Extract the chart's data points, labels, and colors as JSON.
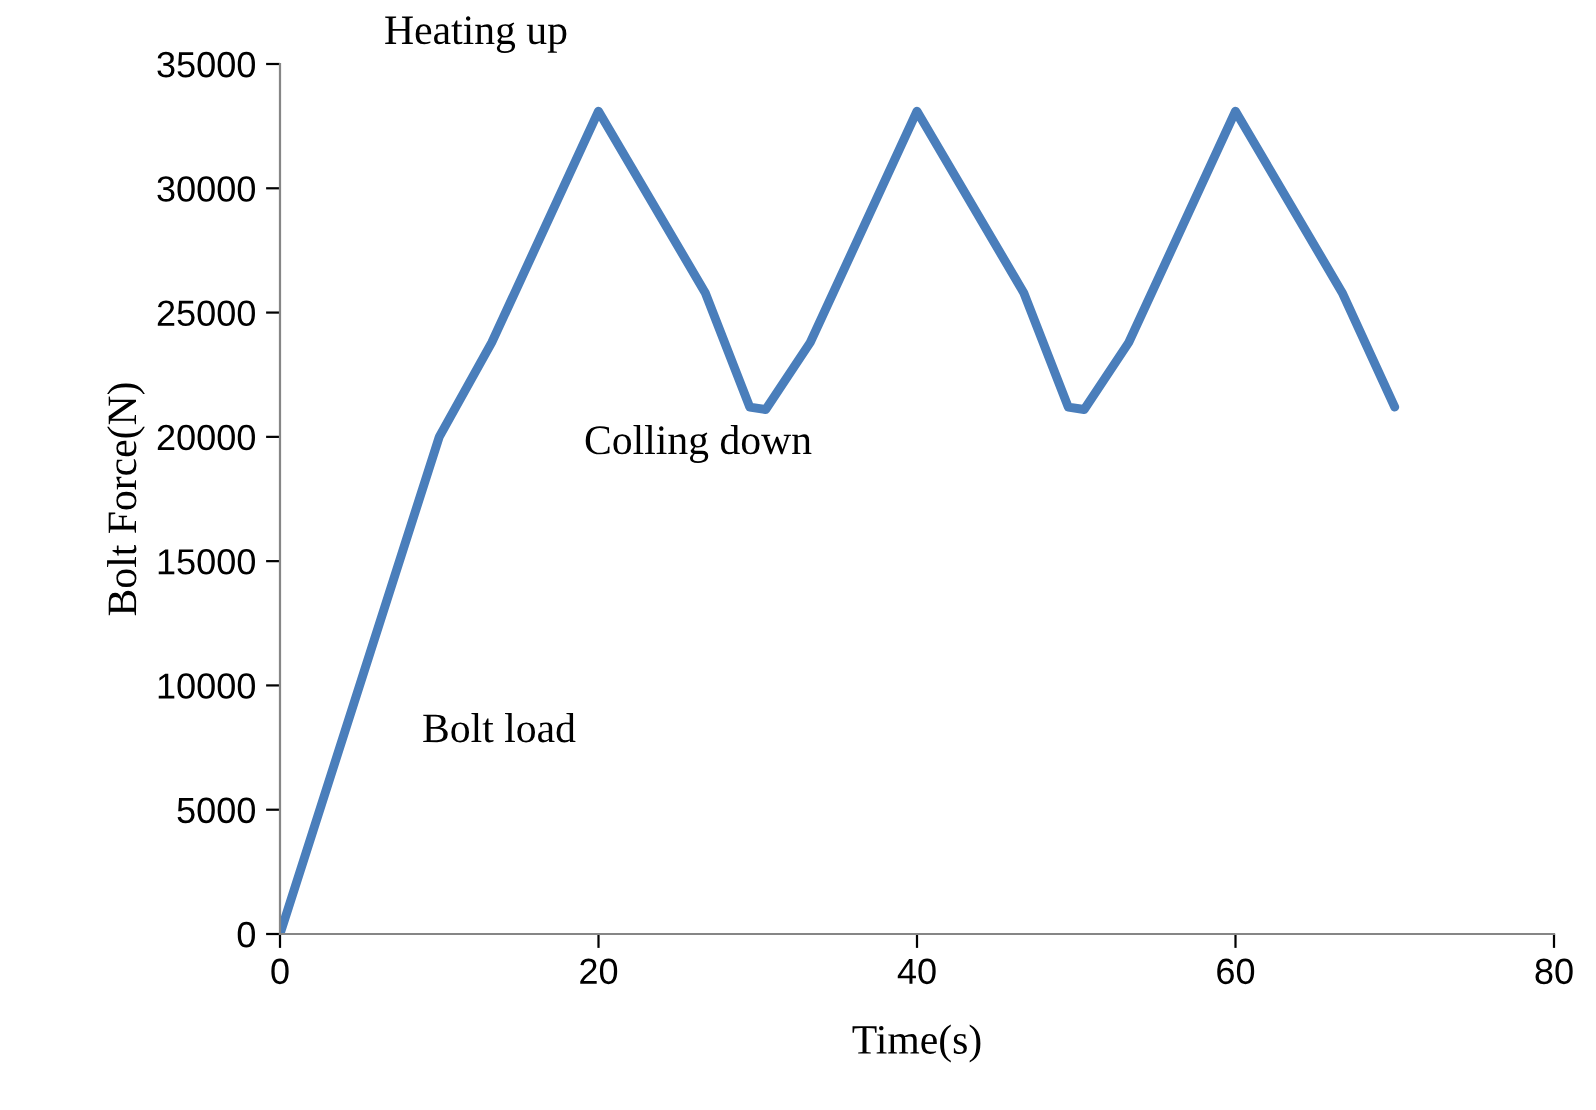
{
  "chart_data": {
    "type": "line",
    "xlabel": "Time(s)",
    "ylabel": "Bolt Force(N)",
    "annotations": [
      "Heating up",
      "Colling down",
      "Bolt load"
    ],
    "x": [
      0,
      10,
      13.3,
      20,
      26.7,
      29.5,
      30.5,
      33.3,
      40,
      46.7,
      49.5,
      50.5,
      53.3,
      60,
      66.7,
      70
    ],
    "series": [
      {
        "color": "#4a7ebb",
        "values": [
          0,
          20000,
          23800,
          33100,
          25800,
          21200,
          21100,
          23800,
          33100,
          25800,
          21200,
          21100,
          23800,
          33100,
          25800,
          21200
        ]
      }
    ],
    "xlim": [
      0,
      80
    ],
    "xticks": [
      0,
      20,
      40,
      60,
      80
    ],
    "ylim": [
      0,
      35000
    ],
    "yticks": [
      0,
      5000,
      10000,
      15000,
      20000,
      25000,
      30000,
      35000
    ],
    "grid": false,
    "legend": false,
    "marker": "none",
    "line_style": "solid"
  }
}
